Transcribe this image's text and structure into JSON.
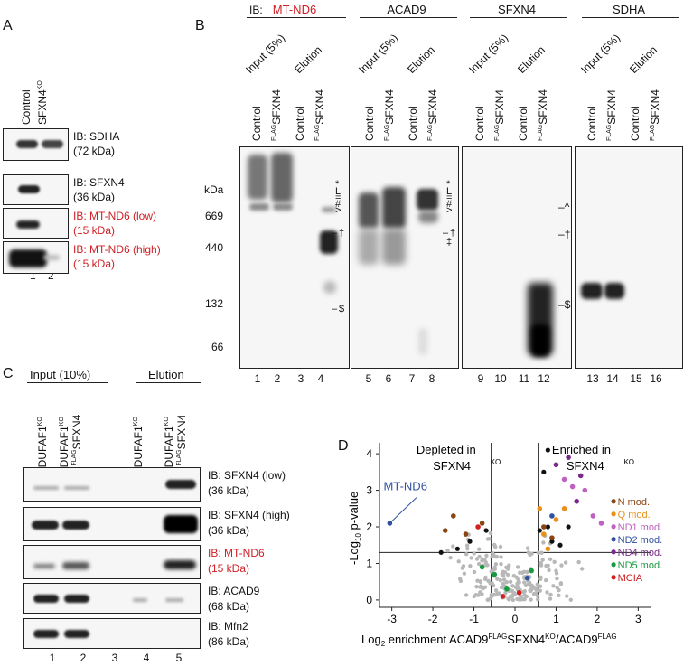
{
  "panelA": {
    "letter": "A",
    "columns": [
      "Control",
      "SFXN4",
      "KO"
    ],
    "blots": [
      {
        "ib": "IB: SDHA",
        "kda": "(72 kDa)",
        "red": false
      },
      {
        "ib": "IB: SFXN4",
        "kda": "(36 kDa)",
        "red": false
      },
      {
        "ib": "IB: MT-ND6 (low)",
        "kda": "(15 kDa)",
        "red": true
      },
      {
        "ib": "IB: MT-ND6 (high)",
        "kda": "(15 kDa)",
        "red": true
      }
    ],
    "lanes": [
      "1",
      "2"
    ]
  },
  "panelB": {
    "letter": "B",
    "ib_prefix": "IB:",
    "antibodies": [
      "MT-ND6",
      "ACAD9",
      "SFXN4",
      "SDHA"
    ],
    "group_labels": [
      "Input (5%)",
      "Elution"
    ],
    "lane_labels": [
      "Control",
      "FLAG",
      "SFXN4"
    ],
    "kda": "kDa",
    "markers": [
      "669",
      "440",
      "132",
      "66"
    ],
    "sym1": [
      "*",
      "L",
      "=",
      "#",
      ">",
      "–",
      "†",
      "–",
      "$"
    ],
    "sym_mid": [
      "*",
      "L",
      "=",
      "#",
      ">",
      "–",
      "†",
      "‡"
    ],
    "sym3": [
      "^",
      "†",
      "$"
    ],
    "lanes": [
      "1",
      "2",
      "3",
      "4",
      "5",
      "6",
      "7",
      "8",
      "9",
      "10",
      "11",
      "12",
      "13",
      "14",
      "15",
      "16"
    ]
  },
  "panelC": {
    "letter": "C",
    "input": "Input (10%)",
    "elution": "Elution",
    "col1": "NDUFAF1",
    "ko": "KO",
    "plus": "+ ",
    "flag": "FLAG",
    "sfxn4": "SFXN4",
    "blots": [
      {
        "ib": "IB: SFXN4 (low)",
        "kda": "(36 kDa)",
        "red": false
      },
      {
        "ib": "IB: SFXN4 (high)",
        "kda": "(36 kDa)",
        "red": false
      },
      {
        "ib": "IB: MT-ND6",
        "kda": "(15 kDa)",
        "red": true
      },
      {
        "ib": "IB: ACAD9",
        "kda": "(68 kDa)",
        "red": false
      },
      {
        "ib": "IB: Mfn2",
        "kda": "(86 kDa)",
        "red": false
      }
    ],
    "lanes": [
      "1",
      "2",
      "3",
      "4",
      "5"
    ]
  },
  "panelD": {
    "letter": "D",
    "depleted": "Depleted in",
    "enriched": "Enriched in",
    "sfxn4ko": "SFXN4",
    "ko": "KO",
    "callout": "MT-ND6",
    "ylabel_pre": "-Log",
    "ylabel_sub": "10",
    "ylabel_post": " p-value",
    "xlabel_pre": "Log",
    "xlabel_sub": "2",
    "xlabel_post": " enrichment ACAD9",
    "xlabel_flag": "FLAG",
    "xlabel_mid": "SFXN4",
    "xlabel_ko": "KO",
    "xlabel_end": "/ACAD9",
    "xlabel_flag2": "FLAG",
    "legend": [
      {
        "label": "N mod.",
        "color": "#8b4513"
      },
      {
        "label": "Q mod.",
        "color": "#e8901c"
      },
      {
        "label": "ND1 mod.",
        "color": "#c060c0"
      },
      {
        "label": "ND2 mod.",
        "color": "#3050a0"
      },
      {
        "label": "ND4 mod.",
        "color": "#7a2a8a"
      },
      {
        "label": "ND5 mod.",
        "color": "#1a9a40"
      },
      {
        "label": "MCIA",
        "color": "#d02020"
      }
    ]
  },
  "chart_data": {
    "type": "scatter",
    "xlabel": "Log2 enrichment ACAD9FLAGSFXN4KO/ACAD9FLAG",
    "ylabel": "-Log10 p-value",
    "xlim": [
      -3.3,
      3.3
    ],
    "ylim": [
      -0.2,
      4.3
    ],
    "x_ticks": [
      -3,
      -2,
      -1,
      0,
      1,
      2,
      3
    ],
    "y_ticks": [
      0,
      1,
      2,
      3,
      4
    ],
    "threshold_x": [
      -0.58,
      0.58
    ],
    "threshold_y": 1.3,
    "series": [
      {
        "name": "N mod.",
        "color": "#8b4513",
        "points": [
          [
            -1.7,
            1.9
          ],
          [
            -1.5,
            2.3
          ],
          [
            -1.2,
            1.8
          ],
          [
            -0.8,
            2.1
          ],
          [
            0.7,
            2.0
          ],
          [
            0.9,
            1.7
          ]
        ]
      },
      {
        "name": "Q mod.",
        "color": "#e8901c",
        "points": [
          [
            0.6,
            2.5
          ],
          [
            0.7,
            1.8
          ],
          [
            1.0,
            2.2
          ],
          [
            1.2,
            2.5
          ],
          [
            0.8,
            1.4
          ]
        ]
      },
      {
        "name": "ND1 mod.",
        "color": "#c060c0",
        "points": [
          [
            1.2,
            3.3
          ],
          [
            1.4,
            3.1
          ],
          [
            1.9,
            2.3
          ],
          [
            2.1,
            2.1
          ],
          [
            1.7,
            3.0
          ]
        ]
      },
      {
        "name": "ND2 mod.",
        "color": "#3050a0",
        "points": [
          [
            0.9,
            2.3
          ],
          [
            0.3,
            0.6
          ],
          [
            -3.05,
            2.1
          ]
        ]
      },
      {
        "name": "ND4 mod.",
        "color": "#7a2a8a",
        "points": [
          [
            1.0,
            3.7
          ],
          [
            1.3,
            3.9
          ],
          [
            1.5,
            2.7
          ],
          [
            1.6,
            3.4
          ]
        ]
      },
      {
        "name": "ND5 mod.",
        "color": "#1a9a40",
        "points": [
          [
            -0.8,
            0.9
          ],
          [
            -0.5,
            0.7
          ],
          [
            -0.2,
            0.3
          ],
          [
            0.4,
            0.8
          ]
        ]
      },
      {
        "name": "MCIA",
        "color": "#d02020",
        "points": [
          [
            -0.9,
            2.0
          ],
          [
            -0.3,
            0.1
          ],
          [
            0.1,
            0.2
          ]
        ]
      }
    ]
  }
}
